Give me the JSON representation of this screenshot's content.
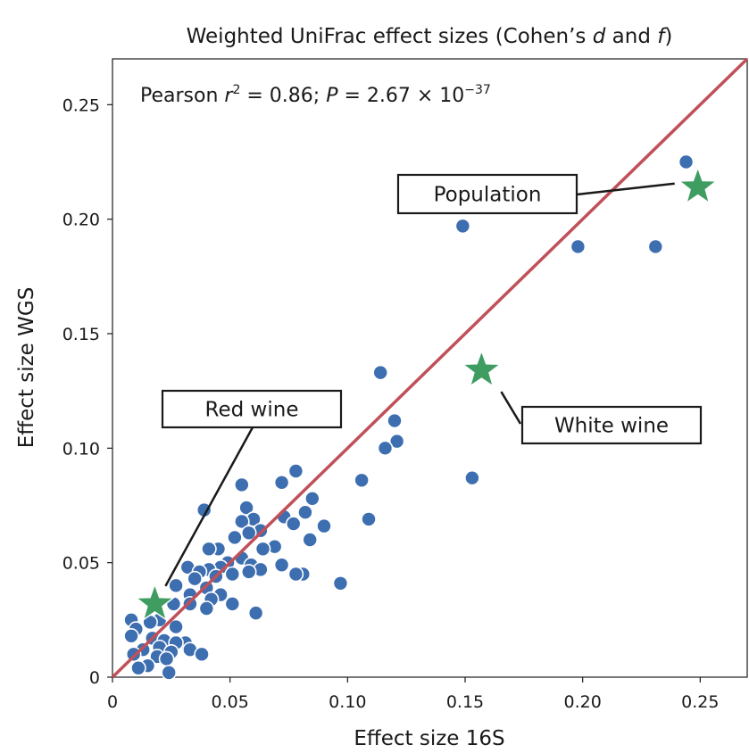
{
  "chart_data": {
    "type": "scatter",
    "title_parts": {
      "prefix": "Weighted UniFrac effect sizes (Cohen’s ",
      "var1": "d",
      "mid": " and ",
      "var2": "f",
      "suffix": ")"
    },
    "xlabel": "Effect size 16S",
    "ylabel": "Effect size WGS",
    "xlim": [
      0,
      0.27
    ],
    "ylim": [
      0,
      0.27
    ],
    "xticks": [
      {
        "value": 0,
        "label": "0"
      },
      {
        "value": 0.05,
        "label": "0.05"
      },
      {
        "value": 0.1,
        "label": "0.10"
      },
      {
        "value": 0.15,
        "label": "0.15"
      },
      {
        "value": 0.2,
        "label": "0.20"
      },
      {
        "value": 0.25,
        "label": "0.25"
      }
    ],
    "yticks": [
      {
        "value": 0,
        "label": "0"
      },
      {
        "value": 0.05,
        "label": "0.05"
      },
      {
        "value": 0.1,
        "label": "0.10"
      },
      {
        "value": 0.15,
        "label": "0.15"
      },
      {
        "value": 0.2,
        "label": "0.20"
      },
      {
        "value": 0.25,
        "label": "0.25"
      }
    ],
    "annotation": {
      "prefix": "Pearson ",
      "r": "r",
      "r_exp": "2",
      "r_value": " = 0.86; ",
      "p": "P",
      "p_value": " = 2.67 × 10",
      "p_exp": "−37"
    },
    "fit_line": {
      "x": [
        0,
        0.27
      ],
      "y": [
        0,
        0.27
      ],
      "color": "#c0505a"
    },
    "point_color": "#3d6eb0",
    "highlight_color": "#3f9d62",
    "points": [
      [
        0.244,
        0.225
      ],
      [
        0.149,
        0.197
      ],
      [
        0.198,
        0.188
      ],
      [
        0.231,
        0.188
      ],
      [
        0.114,
        0.133
      ],
      [
        0.12,
        0.112
      ],
      [
        0.121,
        0.103
      ],
      [
        0.116,
        0.1
      ],
      [
        0.153,
        0.087
      ],
      [
        0.106,
        0.086
      ],
      [
        0.078,
        0.09
      ],
      [
        0.072,
        0.085
      ],
      [
        0.055,
        0.084
      ],
      [
        0.085,
        0.078
      ],
      [
        0.057,
        0.074
      ],
      [
        0.039,
        0.073
      ],
      [
        0.082,
        0.072
      ],
      [
        0.073,
        0.07
      ],
      [
        0.06,
        0.069
      ],
      [
        0.055,
        0.068
      ],
      [
        0.109,
        0.069
      ],
      [
        0.077,
        0.067
      ],
      [
        0.09,
        0.066
      ],
      [
        0.063,
        0.064
      ],
      [
        0.058,
        0.063
      ],
      [
        0.052,
        0.061
      ],
      [
        0.084,
        0.06
      ],
      [
        0.069,
        0.057
      ],
      [
        0.045,
        0.056
      ],
      [
        0.064,
        0.056
      ],
      [
        0.041,
        0.056
      ],
      [
        0.055,
        0.052
      ],
      [
        0.049,
        0.05
      ],
      [
        0.059,
        0.049
      ],
      [
        0.072,
        0.049
      ],
      [
        0.046,
        0.048
      ],
      [
        0.032,
        0.048
      ],
      [
        0.041,
        0.047
      ],
      [
        0.063,
        0.047
      ],
      [
        0.081,
        0.045
      ],
      [
        0.078,
        0.045
      ],
      [
        0.037,
        0.046
      ],
      [
        0.051,
        0.045
      ],
      [
        0.058,
        0.046
      ],
      [
        0.044,
        0.044
      ],
      [
        0.035,
        0.043
      ],
      [
        0.097,
        0.041
      ],
      [
        0.027,
        0.04
      ],
      [
        0.04,
        0.039
      ],
      [
        0.033,
        0.036
      ],
      [
        0.046,
        0.036
      ],
      [
        0.042,
        0.034
      ],
      [
        0.026,
        0.032
      ],
      [
        0.051,
        0.032
      ],
      [
        0.033,
        0.032
      ],
      [
        0.04,
        0.03
      ],
      [
        0.061,
        0.028
      ],
      [
        0.008,
        0.025
      ],
      [
        0.02,
        0.025
      ],
      [
        0.016,
        0.024
      ],
      [
        0.01,
        0.021
      ],
      [
        0.027,
        0.022
      ],
      [
        0.008,
        0.018
      ],
      [
        0.017,
        0.017
      ],
      [
        0.022,
        0.016
      ],
      [
        0.031,
        0.015
      ],
      [
        0.027,
        0.015
      ],
      [
        0.02,
        0.013
      ],
      [
        0.013,
        0.012
      ],
      [
        0.033,
        0.012
      ],
      [
        0.025,
        0.011
      ],
      [
        0.038,
        0.01
      ],
      [
        0.009,
        0.01
      ],
      [
        0.019,
        0.009
      ],
      [
        0.023,
        0.008
      ],
      [
        0.015,
        0.005
      ],
      [
        0.011,
        0.004
      ],
      [
        0.024,
        0.002
      ]
    ],
    "highlights": [
      {
        "name": "Population",
        "x": 0.249,
        "y": 0.214
      },
      {
        "name": "White wine",
        "x": 0.157,
        "y": 0.134
      },
      {
        "name": "Red wine",
        "x": 0.018,
        "y": 0.032
      }
    ],
    "labels": [
      {
        "text": "Population",
        "target": 0
      },
      {
        "text": "White wine",
        "target": 1
      },
      {
        "text": "Red wine",
        "target": 2
      }
    ]
  }
}
